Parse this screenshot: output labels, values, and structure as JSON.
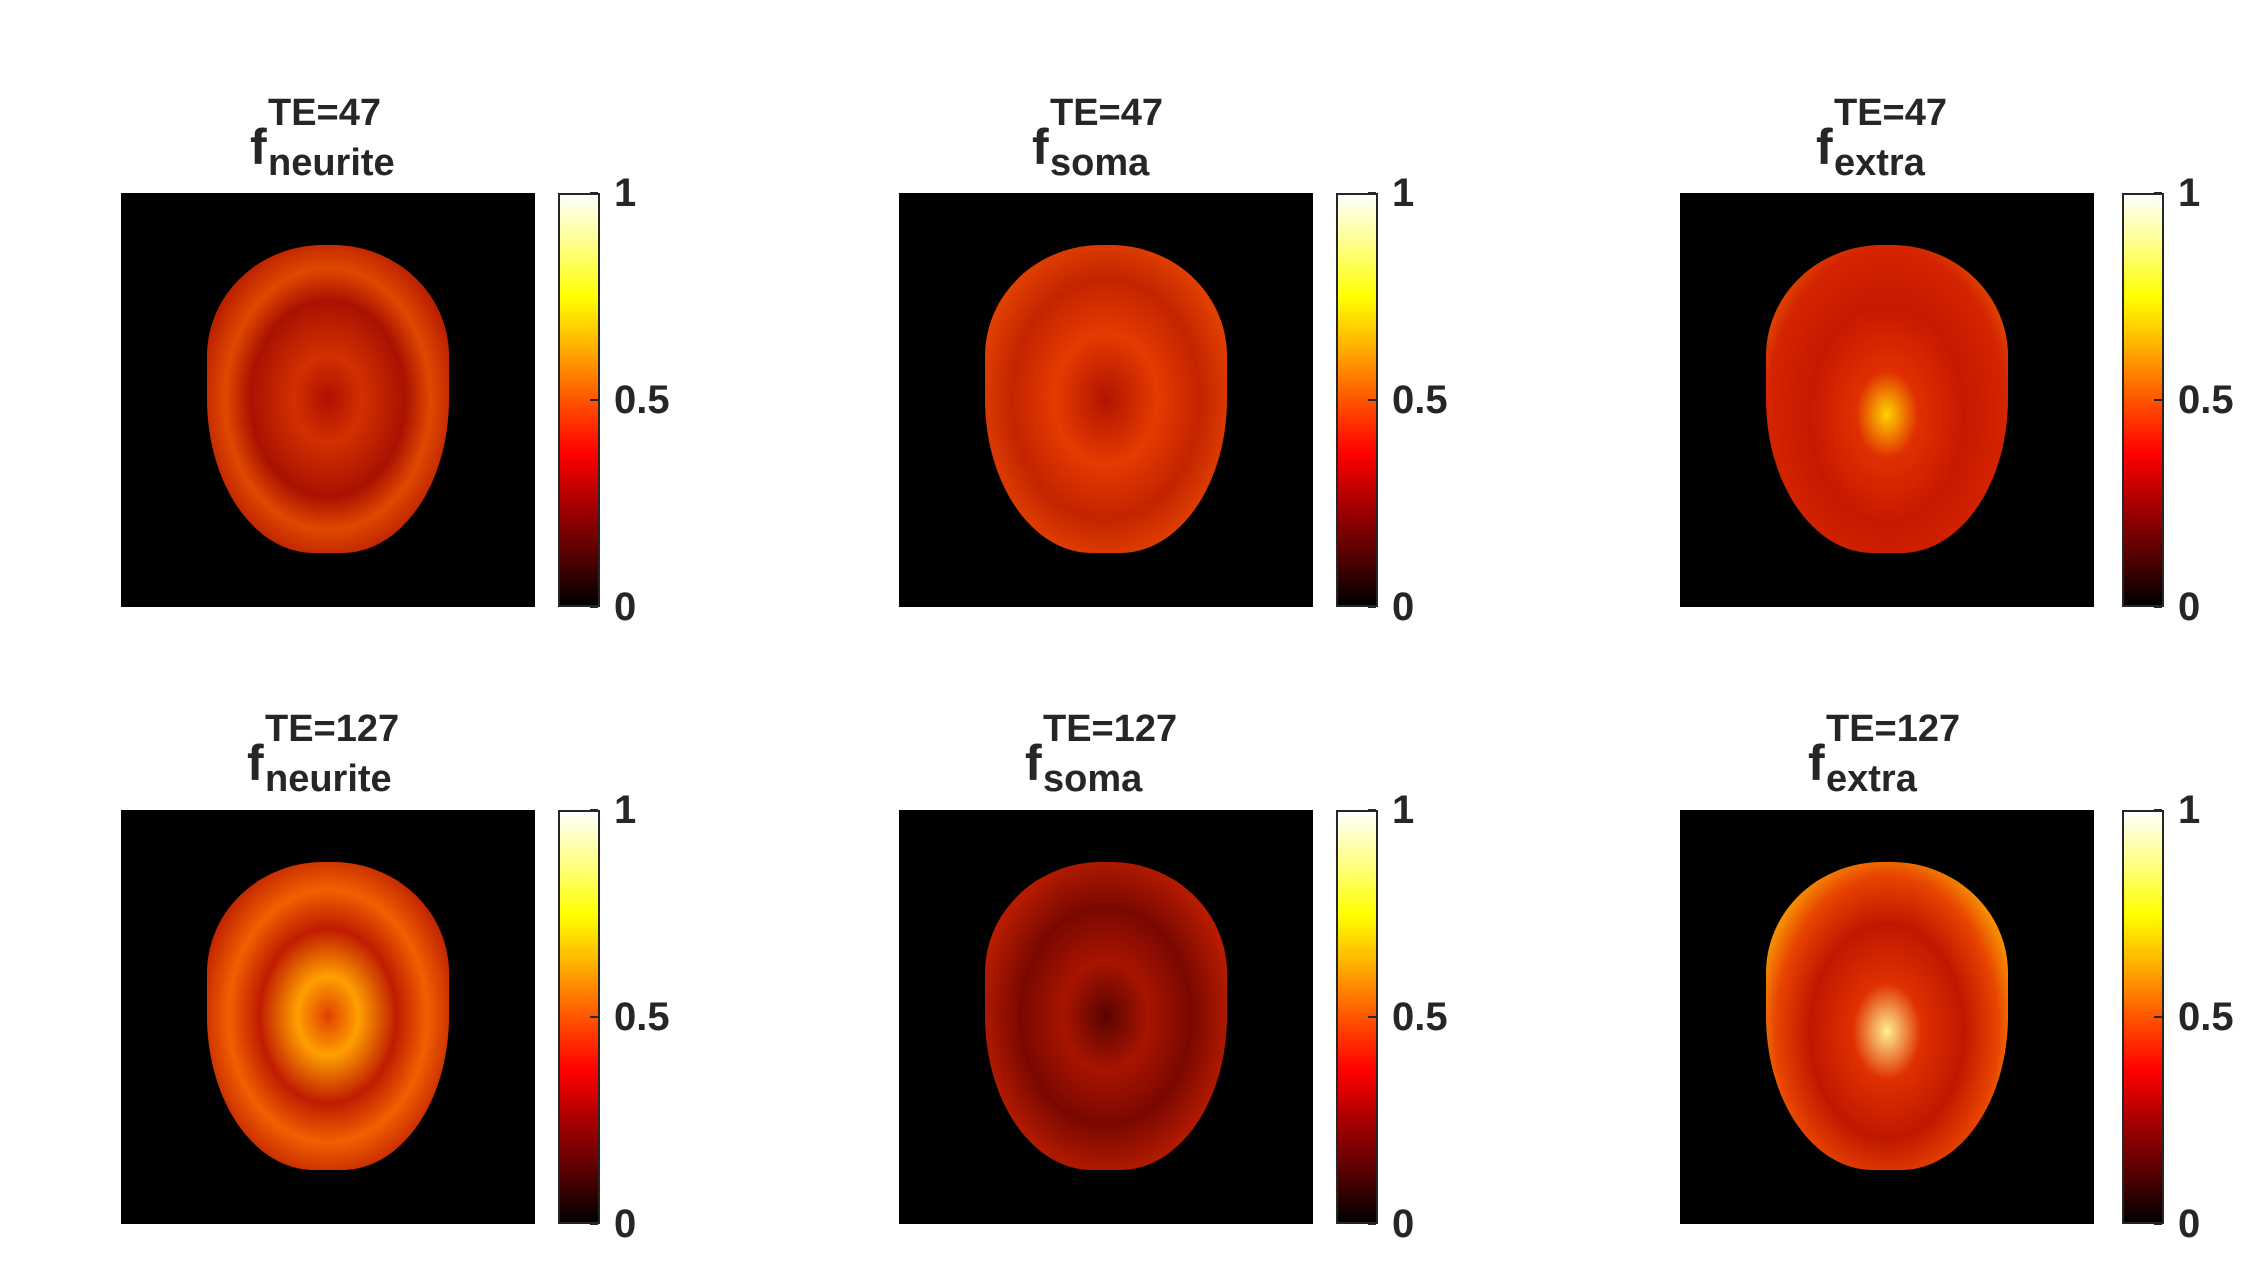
{
  "panels": [
    {
      "sup": "TE=47",
      "sub": "neurite",
      "colorbar_ticks": [
        "0",
        "0.5",
        "1"
      ],
      "colormap": "hot",
      "clim": [
        0,
        1
      ]
    },
    {
      "sup": "TE=47",
      "sub": "soma",
      "colorbar_ticks": [
        "0",
        "0.5",
        "1"
      ],
      "colormap": "hot",
      "clim": [
        0,
        1
      ]
    },
    {
      "sup": "TE=47",
      "sub": "extra",
      "colorbar_ticks": [
        "0",
        "0.5",
        "1"
      ],
      "colormap": "hot",
      "clim": [
        0,
        1
      ]
    },
    {
      "sup": "TE=127",
      "sub": "neurite",
      "colorbar_ticks": [
        "0",
        "0.5",
        "1"
      ],
      "colormap": "hot",
      "clim": [
        0,
        1
      ]
    },
    {
      "sup": "TE=127",
      "sub": "soma",
      "colorbar_ticks": [
        "0",
        "0.5",
        "1"
      ],
      "colormap": "hot",
      "clim": [
        0,
        1
      ]
    },
    {
      "sup": "TE=127",
      "sub": "extra",
      "colorbar_ticks": [
        "0",
        "0.5",
        "1"
      ],
      "colormap": "hot",
      "clim": [
        0,
        1
      ]
    }
  ],
  "title_base": "f"
}
